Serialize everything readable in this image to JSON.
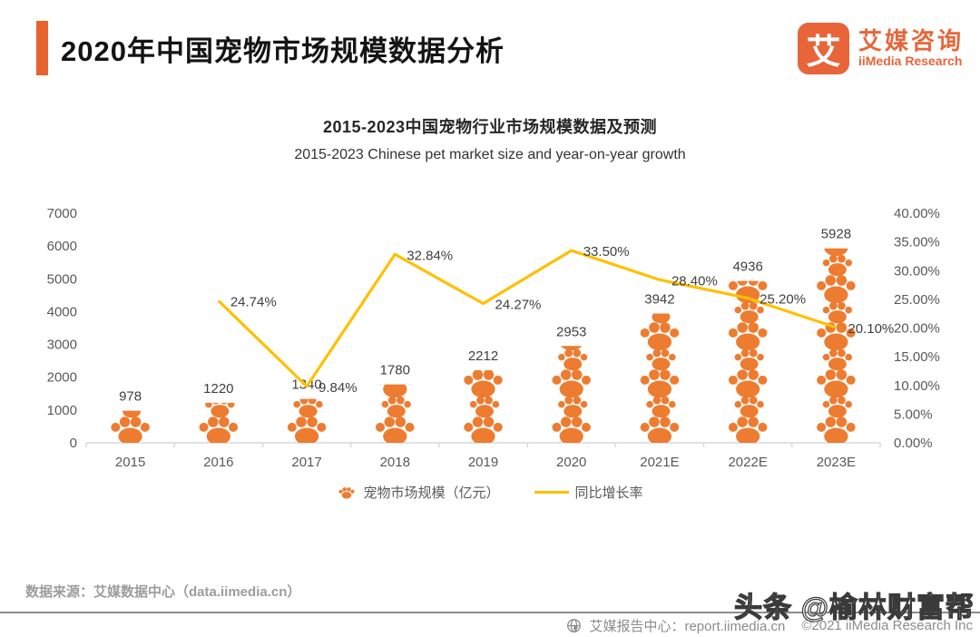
{
  "header": {
    "title": "2020年中国宠物市场规模数据分析",
    "logo_mark": "艾",
    "logo_zh": "艾媒咨询",
    "logo_en": "iiMedia Research"
  },
  "chart_data": {
    "type": "bar",
    "title": "2015-2023中国宠物行业市场规模数据及预测",
    "subtitle": "2015-2023 Chinese pet market size and year-on-year growth",
    "categories": [
      "2015",
      "2016",
      "2017",
      "2018",
      "2019",
      "2020",
      "2021E",
      "2022E",
      "2023E"
    ],
    "series": [
      {
        "name": "宠物市场规模（亿元）",
        "type": "bar",
        "values": [
          978,
          1220,
          1340,
          1780,
          2212,
          2953,
          3942,
          4936,
          5928
        ]
      },
      {
        "name": "同比增长率",
        "type": "line",
        "values": [
          null,
          24.74,
          9.84,
          32.84,
          24.27,
          33.5,
          28.4,
          25.2,
          20.1
        ]
      }
    ],
    "line_labels": [
      "",
      "24.74%",
      "9.84%",
      "32.84%",
      "24.27%",
      "33.50%",
      "28.40%",
      "25.20%",
      "20.10%"
    ],
    "left_axis": {
      "min": 0,
      "max": 7000,
      "step": 1000
    },
    "right_axis": {
      "min": 0,
      "max": 40,
      "step": 5,
      "suffix": "%"
    },
    "legend_bar": "宠物市场规模（亿元）",
    "legend_line": "同比增长率",
    "grid": false,
    "legend_position": "bottom"
  },
  "footer": {
    "source": "数据来源：艾媒数据中心（data.iimedia.cn）",
    "report_center": "艾媒报告中心：report.iimedia.cn",
    "copyright": "©2021  iiMedia Research Inc",
    "watermark": "头条 @榆林财富帮"
  },
  "colors": {
    "accent_orange": "#E8622D",
    "logo_orange": "#E8653A",
    "paw_orange": "#ED7C31",
    "line_yellow": "#FFC000",
    "axis_gray": "#595959",
    "footer_gray": "#8C8C8C"
  }
}
